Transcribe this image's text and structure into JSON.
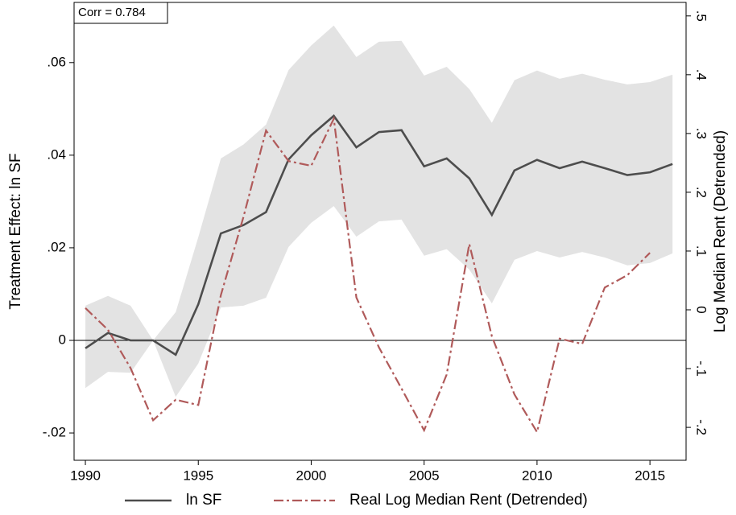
{
  "chart_data": {
    "type": "line",
    "annotation": "Corr = 0.784",
    "y_label": "Treatment Effect: ln SF",
    "y2_label": "Log Median Rent (Detrended)",
    "x": [
      1990,
      1991,
      1992,
      1993,
      1994,
      1995,
      1996,
      1997,
      1998,
      1999,
      2000,
      2001,
      2002,
      2003,
      2004,
      2005,
      2006,
      2007,
      2008,
      2009,
      2010,
      2011,
      2012,
      2013,
      2014,
      2015,
      2016
    ],
    "xlim": [
      1989.5,
      2016.6
    ],
    "xticks": [
      1990,
      1995,
      2000,
      2005,
      2010,
      2015
    ],
    "ylim": [
      -0.0259,
      0.073
    ],
    "yticks": [
      {
        "value": -0.02,
        "label": "-.02"
      },
      0,
      {
        "value": 0.02,
        "label": ".02"
      },
      {
        "value": 0.04,
        "label": ".04"
      },
      {
        "value": 0.06,
        "label": ".06"
      }
    ],
    "y2lim": [
      -0.256,
      0.523
    ],
    "y2ticks": [
      {
        "value": -0.2,
        "label": "-.2"
      },
      {
        "value": -0.1,
        "label": "-.1"
      },
      0,
      {
        "value": 0.1,
        "label": ".1"
      },
      {
        "value": 0.2,
        "label": ".2"
      },
      {
        "value": 0.3,
        "label": ".3"
      },
      {
        "value": 0.4,
        "label": ".4"
      },
      {
        "value": 0.5,
        "label": ".5"
      }
    ],
    "band": {
      "color": "#e3e3e3",
      "upper": [
        0.0075,
        0.0096,
        0.0075,
        0,
        0.0061,
        0.0223,
        0.0393,
        0.0423,
        0.0466,
        0.0584,
        0.0637,
        0.068,
        0.0612,
        0.0645,
        0.0647,
        0.0572,
        0.0591,
        0.0543,
        0.047,
        0.0562,
        0.0583,
        0.0565,
        0.0576,
        0.0563,
        0.0553,
        0.0558,
        0.0574
      ],
      "lower": [
        -0.0103,
        -0.0068,
        -0.007,
        0,
        -0.0122,
        -0.005,
        0.0071,
        0.0075,
        0.0092,
        0.0202,
        0.0254,
        0.029,
        0.0224,
        0.0257,
        0.0261,
        0.0183,
        0.0197,
        0.0153,
        0.008,
        0.0174,
        0.0193,
        0.0179,
        0.0191,
        0.0179,
        0.0162,
        0.0167,
        0.0188
      ]
    },
    "series": [
      {
        "name": "ln SF",
        "color": "#4d4d4d",
        "style": "solid",
        "values": [
          -0.0017,
          0.0016,
          0,
          0,
          -0.0031,
          0.0078,
          0.0231,
          0.0249,
          0.0277,
          0.0391,
          0.0443,
          0.0485,
          0.0417,
          0.045,
          0.0454,
          0.0376,
          0.0393,
          0.035,
          0.0271,
          0.0367,
          0.039,
          0.0372,
          0.0386,
          0.0372,
          0.0357,
          0.0363,
          0.0381
        ]
      },
      {
        "name": "Real Log Median Rent (Detrended)",
        "color": "#b05a5a",
        "style": "dashdot",
        "axis": "y2",
        "values": [
          0.003,
          -0.034,
          -0.099,
          -0.188,
          -0.153,
          -0.162,
          0.025,
          0.158,
          0.305,
          0.253,
          0.245,
          0.325,
          0.021,
          -0.064,
          -0.134,
          -0.205,
          -0.11,
          0.112,
          -0.045,
          -0.144,
          -0.208,
          -0.049,
          -0.058,
          0.038,
          0.059,
          0.097,
          null
        ]
      }
    ]
  }
}
